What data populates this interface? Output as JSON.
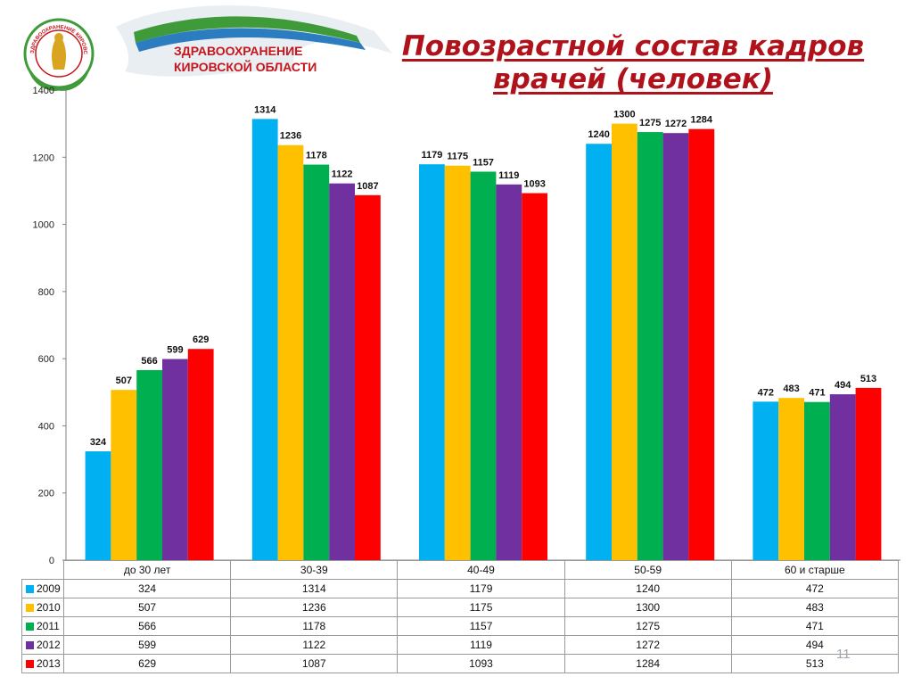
{
  "logo": {
    "text_line1": "ЗДРАВООХРАНЕНИЕ",
    "text_line2": "КИРОВСКОЙ ОБЛАСТИ",
    "emblem_ring_text": "ЗДРАВООХРАНЕНИЕ КИРОВСКОЙ ОБЛАСТИ",
    "colors": {
      "green": "#3f9a3a",
      "blue": "#2c7dc0",
      "red": "#c4161c",
      "gold": "#d9a520"
    }
  },
  "title": {
    "line1": "Повозрастной состав кадров",
    "line2": "врачей (человек)"
  },
  "slide_number": "11",
  "chart_data": {
    "type": "bar",
    "categories": [
      "до 30 лет",
      "30-39",
      "40-49",
      "50-59",
      "60 и старше"
    ],
    "series": [
      {
        "name": "2009",
        "color": "#00b0f0",
        "values": [
          324,
          1314,
          1179,
          1240,
          472
        ]
      },
      {
        "name": "2010",
        "color": "#ffc000",
        "values": [
          507,
          1236,
          1175,
          1300,
          483
        ]
      },
      {
        "name": "2011",
        "color": "#00b050",
        "values": [
          566,
          1178,
          1157,
          1275,
          471
        ]
      },
      {
        "name": "2012",
        "color": "#7030a0",
        "values": [
          599,
          1122,
          1119,
          1272,
          494
        ]
      },
      {
        "name": "2013",
        "color": "#ff0000",
        "values": [
          629,
          1087,
          1093,
          1284,
          513
        ]
      }
    ],
    "ylim": [
      0,
      1400
    ],
    "yticks": [
      0,
      200,
      400,
      600,
      800,
      1000,
      1200,
      1400
    ],
    "grid": false,
    "data_labels": true,
    "legend": "table"
  }
}
